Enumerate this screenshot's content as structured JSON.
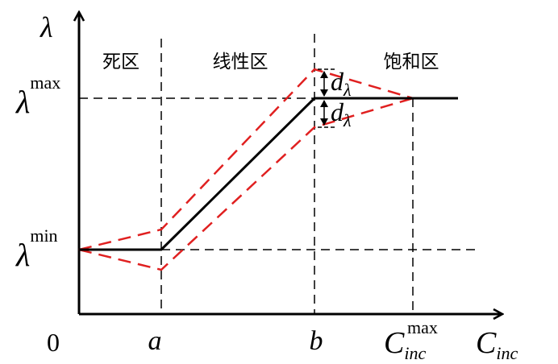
{
  "axes": {
    "y_symbol": "λ",
    "x_symbol_base": "C",
    "x_symbol_sub": "inc",
    "origin_label": "0",
    "x_ticks": {
      "a": "a",
      "b": "b",
      "cmax_base": "C",
      "cmax_sub": "inc",
      "cmax_sup": "max"
    },
    "y_ticks": {
      "lmax_base": "λ",
      "lmax_sup": "max",
      "lmin_base": "λ",
      "lmin_sup": "min"
    }
  },
  "regions": {
    "dead_zone": "死区",
    "linear_zone": "线性区",
    "saturation_zone": "饱和区"
  },
  "annotations": {
    "d_base": "d",
    "d_sub": "λ"
  },
  "colors": {
    "axis": "#000000",
    "main_curve": "#000000",
    "envelope": "#e02020",
    "guide": "#000000"
  }
}
